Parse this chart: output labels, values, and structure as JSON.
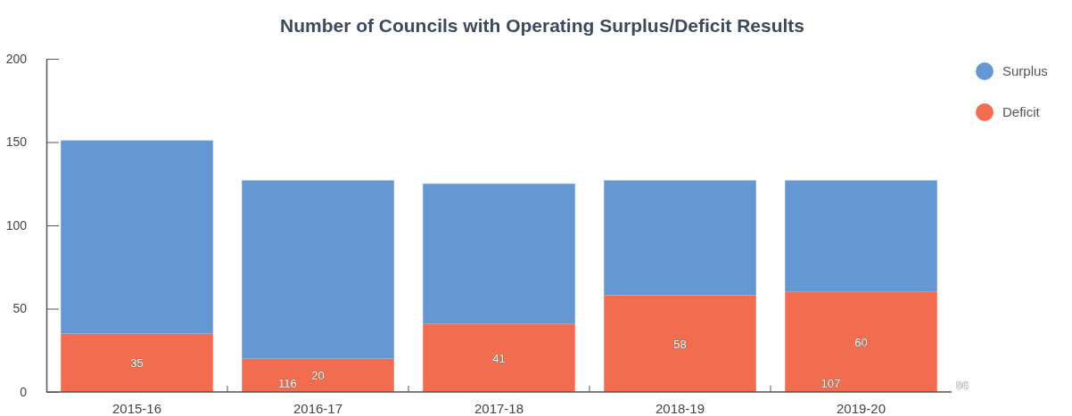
{
  "chart_data": {
    "type": "bar",
    "title": "Number of Councils with Operating Surplus/Deficit Results",
    "categories": [
      "2015-16",
      "2016-17",
      "2017-18",
      "2018-19",
      "2019-20"
    ],
    "stacked": true,
    "series": [
      {
        "name": "Deficit",
        "color": "#f26d50",
        "values": [
          35,
          20,
          41,
          58,
          60
        ],
        "value_labels": [
          "35",
          "20",
          "41",
          "58",
          "60"
        ]
      },
      {
        "name": "Surplus",
        "color": "#6598d2",
        "values": [
          116,
          107,
          84,
          69,
          67
        ]
      }
    ],
    "ylim": [
      0,
      200
    ],
    "yticks": [
      0,
      50,
      100,
      150,
      200
    ],
    "grid": false,
    "legend": "top right",
    "annotations": [
      "116",
      "107",
      "86"
    ]
  }
}
